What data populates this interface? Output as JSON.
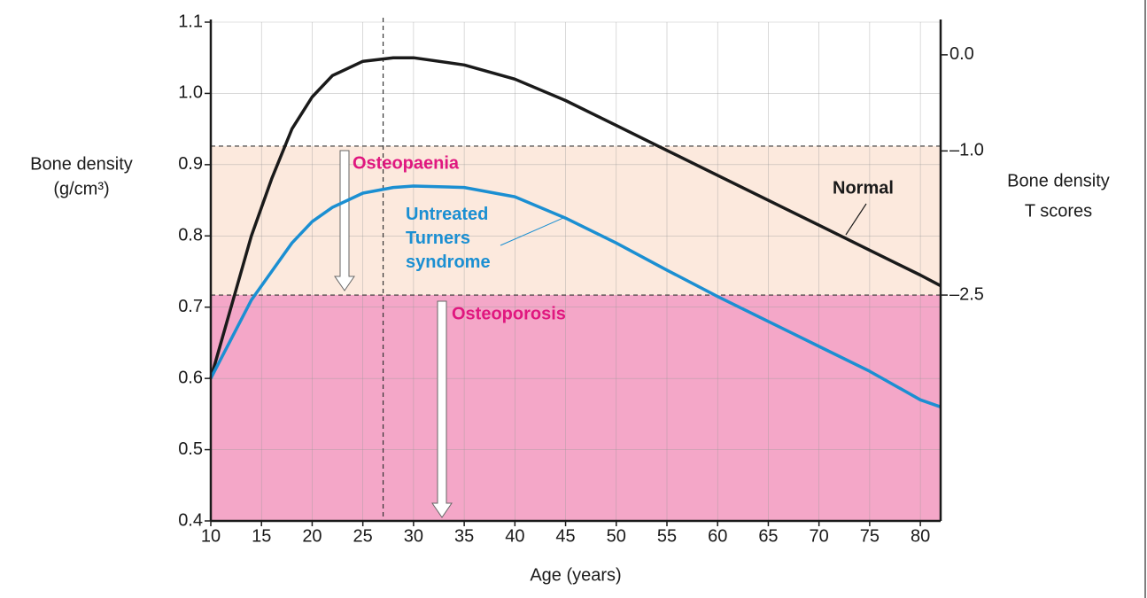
{
  "chart_data": {
    "type": "line",
    "y_label": [
      "Bone density",
      "(g/cm³)"
    ],
    "y2_label": [
      "Bone density",
      "T scores"
    ],
    "x_label": "Age (years)",
    "x": [
      10,
      12,
      14,
      16,
      18,
      20,
      22,
      25,
      28,
      30,
      35,
      40,
      45,
      50,
      55,
      60,
      65,
      70,
      75,
      80,
      82
    ],
    "series": [
      {
        "name": "Normal",
        "color": "#1a1a1a",
        "values": [
          0.6,
          0.7,
          0.8,
          0.88,
          0.95,
          0.995,
          1.025,
          1.045,
          1.05,
          1.05,
          1.04,
          1.02,
          0.99,
          0.955,
          0.92,
          0.885,
          0.85,
          0.815,
          0.78,
          0.745,
          0.73
        ]
      },
      {
        "name": "Untreated Turners syndrome",
        "color": "#1b8fd2",
        "values": [
          0.6,
          0.655,
          0.71,
          0.75,
          0.79,
          0.82,
          0.84,
          0.86,
          0.868,
          0.87,
          0.868,
          0.855,
          0.825,
          0.79,
          0.752,
          0.715,
          0.68,
          0.645,
          0.61,
          0.57,
          0.56
        ]
      }
    ],
    "bands": [
      {
        "label": "Osteopaenia",
        "from": 0.717,
        "to": 0.926,
        "color": "#fce9dd"
      },
      {
        "label": "Osteoporosis",
        "from": 0.4,
        "to": 0.717,
        "color": "#f4a7c8"
      }
    ],
    "vline": 27,
    "xlim": [
      10,
      82
    ],
    "xticks": [
      10,
      15,
      20,
      25,
      30,
      35,
      40,
      45,
      50,
      55,
      60,
      65,
      70,
      75,
      80
    ],
    "ylim": [
      0.4,
      1.1
    ],
    "yticks": [
      0.4,
      0.5,
      0.6,
      0.7,
      0.8,
      0.9,
      {
        "value": 1.0,
        "label": "1.0"
      },
      1.1
    ],
    "y2lim": [
      -4.85,
      0.34
    ],
    "y2ticks": [
      {
        "value": 0,
        "label": "0.0"
      },
      {
        "value": -1,
        "label": "–1.0"
      },
      {
        "value": -2.5,
        "label": "–2.5"
      }
    ],
    "grid": true
  }
}
